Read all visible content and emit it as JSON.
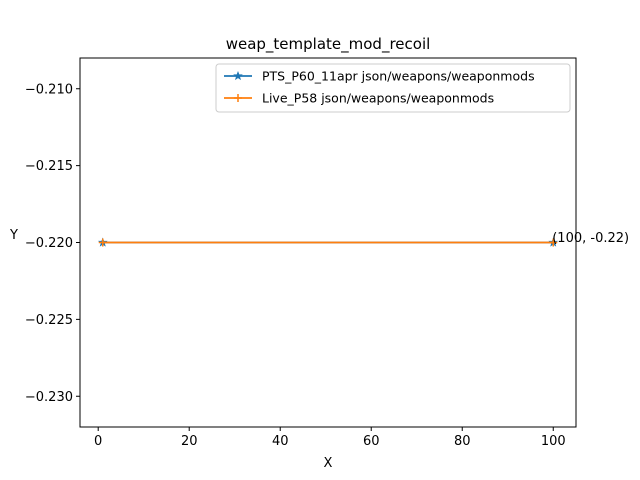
{
  "chart_data": {
    "type": "line",
    "title": "weap_template_mod_recoil",
    "xlabel": "X",
    "ylabel": "Y",
    "xlim": [
      -4,
      105
    ],
    "ylim": [
      -0.232,
      -0.208
    ],
    "xticks": [
      0,
      20,
      40,
      60,
      80,
      100
    ],
    "xtick_labels": [
      "0",
      "20",
      "40",
      "60",
      "80",
      "100"
    ],
    "yticks": [
      -0.21,
      -0.215,
      -0.22,
      -0.225,
      -0.23
    ],
    "ytick_labels": [
      "−0.210",
      "−0.215",
      "−0.220",
      "−0.225",
      "−0.230"
    ],
    "legend_position": "top-right",
    "grid": false,
    "series": [
      {
        "name": "PTS_P60_11apr json/weapons/weaponmods",
        "color": "#1f77b4",
        "marker": "star",
        "x": [
          1,
          100
        ],
        "y": [
          -0.22,
          -0.22
        ]
      },
      {
        "name": "Live_P58 json/weapons/weaponmods",
        "color": "#ff7f0e",
        "marker": "plus",
        "x": [
          1,
          100
        ],
        "y": [
          -0.22,
          -0.22
        ]
      }
    ],
    "annotations": [
      {
        "text": "(100, -0.22)",
        "x": 100,
        "y": -0.22
      }
    ]
  }
}
